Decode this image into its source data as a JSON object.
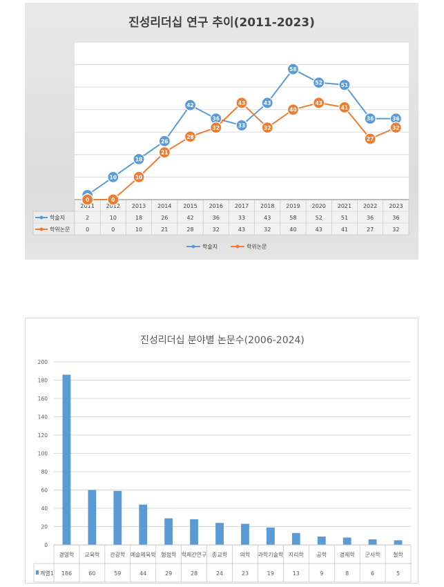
{
  "chart_data": [
    {
      "type": "line",
      "title": "진성리더십 연구 추이(2011-2023)",
      "categories": [
        "2011",
        "2012",
        "2013",
        "2014",
        "2015",
        "2016",
        "2017",
        "2018",
        "2019",
        "2020",
        "2021",
        "2022",
        "2023"
      ],
      "series": [
        {
          "name": "학술지",
          "color": "#5b9bd5",
          "values": [
            2,
            10,
            18,
            26,
            42,
            36,
            33,
            43,
            58,
            52,
            51,
            36,
            36
          ]
        },
        {
          "name": "학위논문",
          "color": "#ed7d31",
          "values": [
            0,
            0,
            10,
            21,
            28,
            32,
            43,
            32,
            40,
            43,
            41,
            27,
            32
          ]
        }
      ],
      "legend": "bottom",
      "data_table": true
    },
    {
      "type": "bar",
      "title": "진성리더십 분야별 논문수(2006-2024)",
      "categories": [
        "경영학",
        "교육학",
        "관광학",
        "예술체육학",
        "행정학",
        "학제간연구",
        "종교학",
        "의학",
        "과학기술학",
        "지리학",
        "공학",
        "경제학",
        "군사학",
        "철학"
      ],
      "series": [
        {
          "name": "계열1",
          "color": "#5b9bd5",
          "values": [
            186,
            60,
            59,
            44,
            29,
            28,
            24,
            23,
            19,
            13,
            9,
            8,
            6,
            5
          ]
        }
      ],
      "yticks": [
        0,
        20,
        40,
        60,
        80,
        100,
        120,
        140,
        160,
        180,
        200
      ],
      "ylim": [
        0,
        200
      ],
      "grid": true,
      "data_table": true
    }
  ]
}
